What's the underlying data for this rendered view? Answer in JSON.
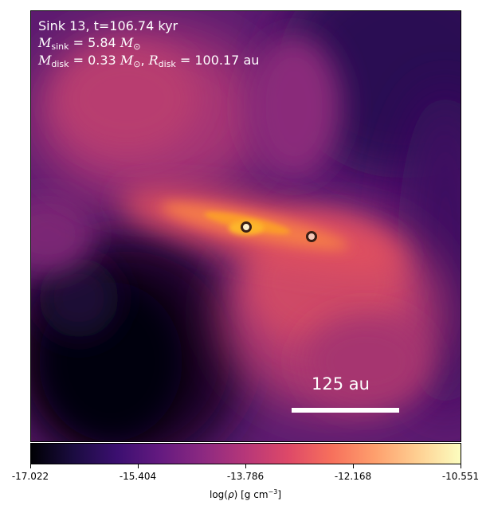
{
  "annotation": {
    "line1": "Sink 13, t=106.74 kyr",
    "m_sink_sym": "M",
    "m_sink_sub": "sink",
    "m_sink_val": " = 5.84 ",
    "m_unit": "M",
    "m_unit_sub": "⊙",
    "m_disk_sym": "M",
    "m_disk_sub": "disk",
    "m_disk_val": " = 0.33 ",
    "sep": ", ",
    "r_disk_sym": "R",
    "r_disk_sub": "disk",
    "r_disk_val": " = 100.17 au"
  },
  "scale_bar": {
    "label": "125 au"
  },
  "colorbar": {
    "colormap": "inferno",
    "ticks": [
      "-17.022",
      "-15.404",
      "-13.786",
      "-12.168",
      "-10.551"
    ],
    "label_prefix": "log(",
    "label_rho": "ρ",
    "label_mid": ") [g cm",
    "label_exp": "−3",
    "label_suffix": "]"
  }
}
